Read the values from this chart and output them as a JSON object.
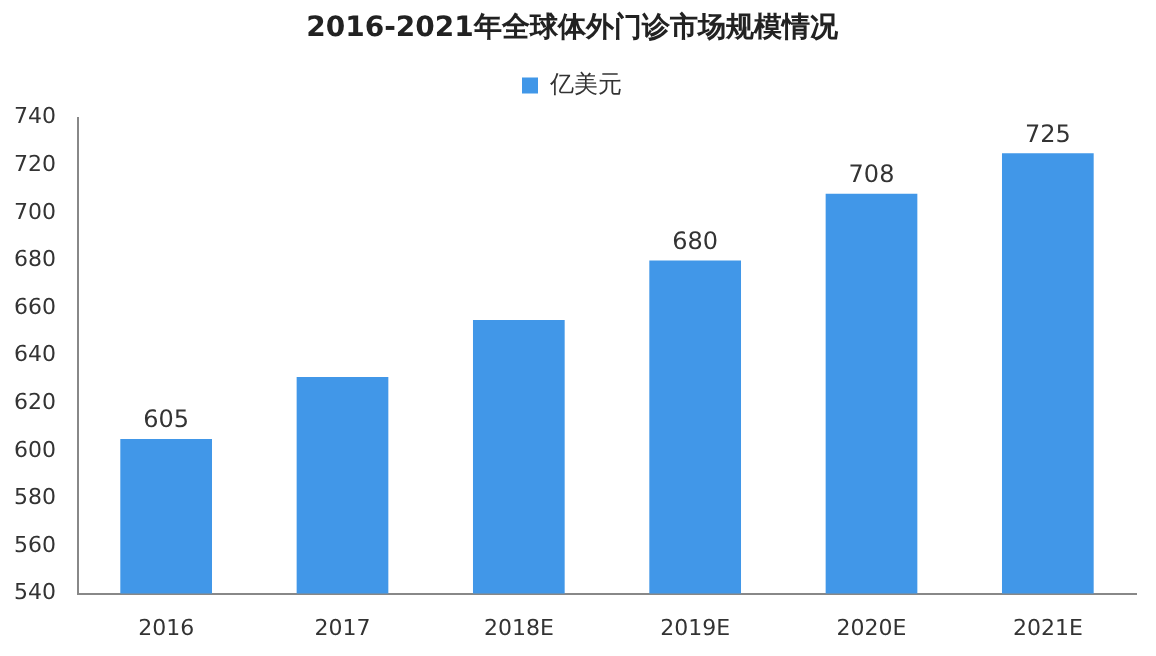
{
  "chart_data": {
    "type": "bar",
    "title": "2016-2021年全球体外门诊市场规模情况",
    "categories": [
      "2016",
      "2017",
      "2018E",
      "2019E",
      "2020E",
      "2021E"
    ],
    "series": [
      {
        "name": "亿美元",
        "color": "#4197e8",
        "values": [
          605,
          631,
          655,
          680,
          708,
          725
        ],
        "value_labels": [
          "605",
          null,
          null,
          "680",
          "708",
          "725"
        ]
      }
    ],
    "ylim": [
      540,
      740
    ],
    "yticks": [
      540,
      560,
      580,
      600,
      620,
      640,
      660,
      680,
      700,
      720,
      740
    ],
    "grid": false,
    "legend": "top"
  }
}
